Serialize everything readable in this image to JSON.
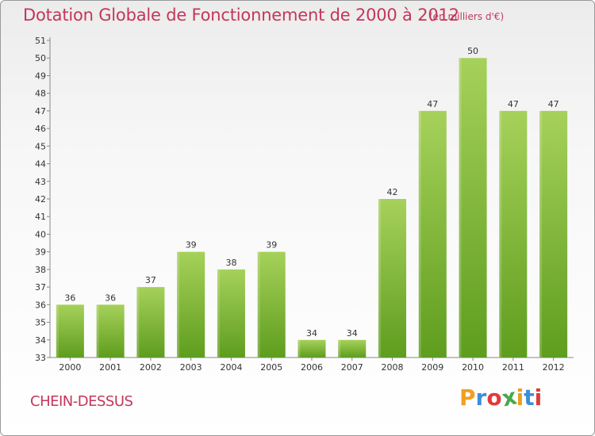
{
  "chart_data": {
    "type": "bar",
    "title": "Dotation Globale de Fonctionnement de 2000 à 2012",
    "subtitle": "(en milliers d'€)",
    "categories": [
      "2000",
      "2001",
      "2002",
      "2003",
      "2004",
      "2005",
      "2006",
      "2007",
      "2008",
      "2009",
      "2010",
      "2011",
      "2012"
    ],
    "values": [
      36,
      36,
      37,
      39,
      38,
      39,
      34,
      34,
      42,
      47,
      50,
      47,
      47
    ],
    "ylim": [
      33,
      51
    ],
    "yticks": [
      33,
      34,
      35,
      36,
      37,
      38,
      39,
      40,
      41,
      42,
      43,
      44,
      45,
      46,
      47,
      48,
      49,
      50,
      51
    ],
    "grid": false,
    "bar_color_top": "#a6d15a",
    "bar_color_bottom": "#5e9d1e"
  },
  "footer": {
    "commune": "CHEIN-DESSUS",
    "logo_letters": [
      "P",
      "r",
      "o",
      "x",
      "i",
      "t",
      "i"
    ],
    "logo_colors": [
      "#f0a020",
      "#3b8fd8",
      "#e03a3a",
      "#4aa84a",
      "#e8a020",
      "#3b8fd8",
      "#e03a3a"
    ]
  },
  "colors": {
    "title": "#c4365a"
  }
}
